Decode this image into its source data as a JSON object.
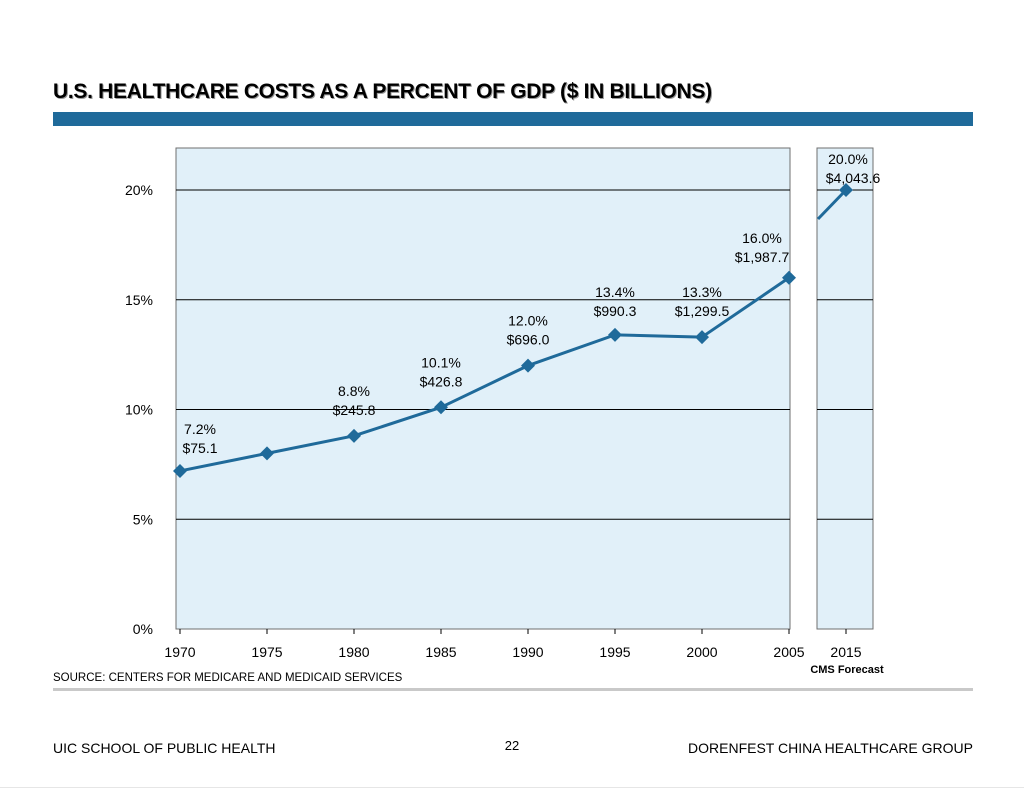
{
  "page": {
    "title": "U.S. HEALTHCARE COSTS AS A PERCENT OF GDP ($ IN BILLIONS)",
    "source": "SOURCE:  CENTERS FOR MEDICARE AND MEDICAID SERVICES",
    "footer_left": "UIC SCHOOL OF PUBLIC HEALTH",
    "page_number": "22",
    "footer_right": "DORENFEST CHINA HEALTHCARE GROUP",
    "forecast_label": "CMS Forecast"
  },
  "colors": {
    "line": "#1f6a9a",
    "plot_fill": "#e1f0f9",
    "title_bar": "#1f6a9a"
  },
  "chart_data": {
    "type": "line",
    "title": "U.S. HEALTHCARE COSTS AS A PERCENT OF GDP ($ IN BILLIONS)",
    "xlabel": "",
    "ylabel": "",
    "ylim": [
      0,
      22
    ],
    "yticks": [
      0,
      5,
      10,
      15,
      20
    ],
    "ytick_labels": [
      "0%",
      "5%",
      "10%",
      "15%",
      "20%"
    ],
    "grid": true,
    "legend": "none",
    "x": [
      1970,
      1975,
      1980,
      1985,
      1990,
      1995,
      2000,
      2005
    ],
    "xtick_labels": [
      "1970",
      "1975",
      "1980",
      "1985",
      "1990",
      "1995",
      "2000",
      "2005"
    ],
    "values": [
      7.2,
      8.0,
      8.8,
      10.1,
      12.0,
      13.4,
      13.3,
      16.0
    ],
    "annotations": [
      {
        "x": 1970,
        "pct": "7.2%",
        "amount": "$75.1"
      },
      {
        "x": 1980,
        "pct": "8.8%",
        "amount": "$245.8"
      },
      {
        "x": 1985,
        "pct": "10.1%",
        "amount": "$426.8"
      },
      {
        "x": 1990,
        "pct": "12.0%",
        "amount": "$696.0"
      },
      {
        "x": 1995,
        "pct": "13.4%",
        "amount": "$990.3"
      },
      {
        "x": 2000,
        "pct": "13.3%",
        "amount": "$1,299.5"
      },
      {
        "x": 2005,
        "pct": "16.0%",
        "amount": "$1,987.7"
      }
    ],
    "forecast": {
      "x": 2015,
      "value": 20.0,
      "xtick_label": "2015",
      "pct": "20.0%",
      "amount": "$4,043.6",
      "label": "CMS Forecast"
    }
  }
}
